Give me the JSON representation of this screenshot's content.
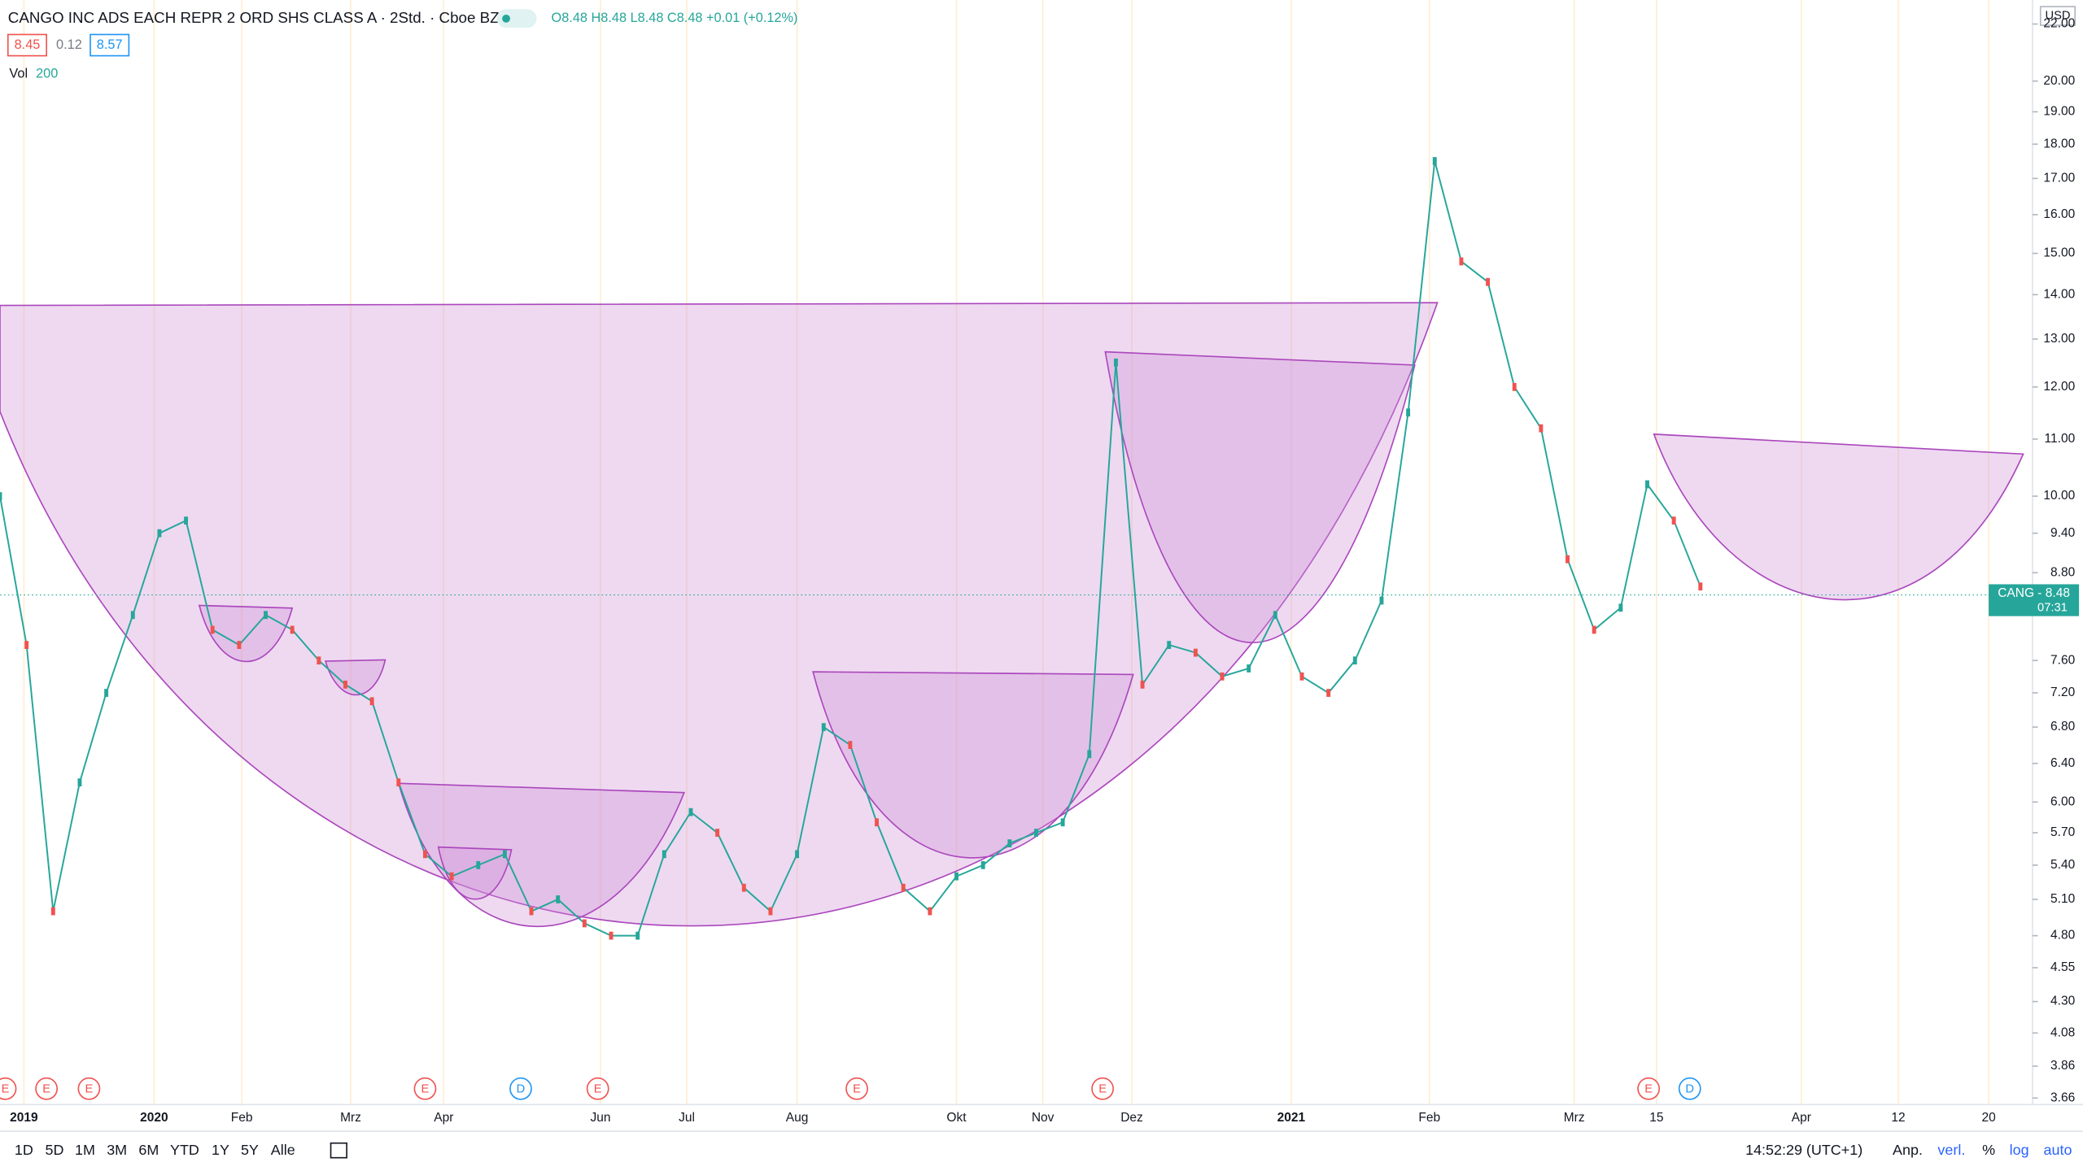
{
  "header": {
    "symbol": "CANGO INC ADS EACH REPR 2 ORD SHS CLASS A · 2Std. · Cboe BZX",
    "ohlc": "O8.48 H8.48 L8.48 C8.48 +0.01 (+0.12%)",
    "bid": "8.45",
    "spread": "0.12",
    "ask": "8.57",
    "vol_label": "Vol",
    "vol_value": "200",
    "currency": "USD"
  },
  "chart_data": {
    "type": "line",
    "log_scale": true,
    "color": "#26a69a",
    "values": [
      10,
      7.8,
      5.0,
      6.2,
      7.2,
      8.2,
      9.4,
      9.6,
      8.0,
      7.8,
      8.2,
      8.0,
      7.6,
      7.3,
      7.1,
      6.2,
      5.5,
      5.3,
      5.4,
      5.5,
      5.0,
      5.1,
      4.9,
      4.8,
      4.8,
      5.5,
      5.9,
      5.7,
      5.2,
      5.0,
      5.5,
      6.8,
      6.6,
      5.8,
      5.2,
      5.0,
      5.3,
      5.4,
      5.6,
      5.7,
      5.8,
      6.5,
      12.5,
      7.3,
      7.8,
      7.7,
      7.4,
      7.5,
      8.2,
      7.4,
      7.2,
      7.6,
      8.4,
      11.5,
      17.5,
      14.8,
      14.3,
      12.0,
      11.2,
      9.0,
      8.0,
      8.3,
      10.2,
      9.6,
      8.6
    ],
    "ylim": [
      3.62,
      22.9
    ],
    "yticks": [
      {
        "value": 22,
        "label": "22.00"
      },
      {
        "value": 20,
        "label": "20.00"
      },
      {
        "value": 19,
        "label": "19.00"
      },
      {
        "value": 18,
        "label": "18.00"
      },
      {
        "value": 17,
        "label": "17.00"
      },
      {
        "value": 16,
        "label": "16.00"
      },
      {
        "value": 15,
        "label": "15.00"
      },
      {
        "value": 14,
        "label": "14.00"
      },
      {
        "value": 13,
        "label": "13.00"
      },
      {
        "value": 12,
        "label": "12.00"
      },
      {
        "value": 11,
        "label": "11.00"
      },
      {
        "value": 10,
        "label": "10.00"
      },
      {
        "value": 9.4,
        "label": "9.40"
      },
      {
        "value": 8.8,
        "label": "8.80"
      },
      {
        "value": 7.6,
        "label": "7.60"
      },
      {
        "value": 7.2,
        "label": "7.20"
      },
      {
        "value": 6.8,
        "label": "6.80"
      },
      {
        "value": 6.4,
        "label": "6.40"
      },
      {
        "value": 6,
        "label": "6.00"
      },
      {
        "value": 5.7,
        "label": "5.70"
      },
      {
        "value": 5.4,
        "label": "5.40"
      },
      {
        "value": 5.1,
        "label": "5.10"
      },
      {
        "value": 4.8,
        "label": "4.80"
      },
      {
        "value": 4.55,
        "label": "4.55"
      },
      {
        "value": 4.3,
        "label": "4.30"
      },
      {
        "value": 4.08,
        "label": "4.08"
      },
      {
        "value": 3.86,
        "label": "3.86"
      },
      {
        "value": 3.66,
        "label": "3.66"
      }
    ],
    "last_price": 8.48,
    "last_label": "CANG - 8.48",
    "countdown": "07:31",
    "time_labels": [
      "2019",
      "2020",
      "Feb",
      "Mrz",
      "Apr",
      "Jun",
      "Jul",
      "Aug",
      "Okt",
      "Nov",
      "Dez",
      "2021",
      "Feb",
      "Mrz",
      "15",
      "Apr",
      "12",
      "20"
    ]
  },
  "events": [
    "E",
    "E",
    "E",
    "E",
    "D",
    "E",
    "E",
    "E",
    "E",
    "D"
  ],
  "toolbar": {
    "ranges": [
      "1D",
      "5D",
      "1M",
      "3M",
      "6M",
      "YTD",
      "1Y",
      "5Y",
      "Alle"
    ],
    "clock": "14:52:29 (UTC+1)",
    "options": [
      "Anp.",
      "verl.",
      "%",
      "log",
      "auto"
    ]
  }
}
